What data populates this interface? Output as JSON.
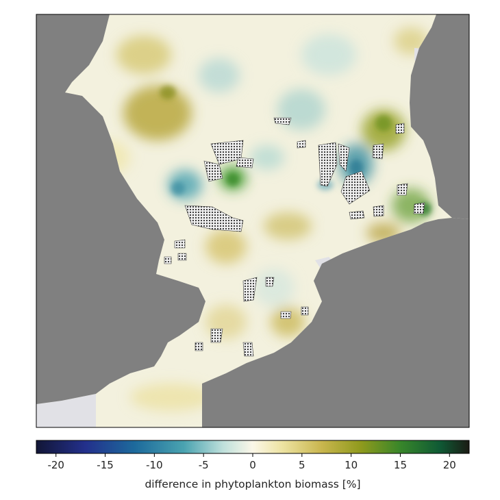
{
  "map": {
    "colors": {
      "land": "#808080",
      "out_of_domain_water": "#e1e1e6",
      "background_water": "#f3f1de",
      "frame": "#000000",
      "wind_farm_hatch": "#333333"
    }
  },
  "colorbar": {
    "label": "difference in phytoplankton biomass [%]",
    "min": -22,
    "max": 22,
    "ticks": [
      {
        "value": -20,
        "label": "-20"
      },
      {
        "value": -15,
        "label": "-15"
      },
      {
        "value": -10,
        "label": "-10"
      },
      {
        "value": -5,
        "label": "-5"
      },
      {
        "value": 0,
        "label": "0"
      },
      {
        "value": 5,
        "label": "5"
      },
      {
        "value": 10,
        "label": "10"
      },
      {
        "value": 15,
        "label": "15"
      },
      {
        "value": 20,
        "label": "20"
      }
    ],
    "stops": [
      {
        "value": -22,
        "color": "#121636"
      },
      {
        "value": -17,
        "color": "#23308c"
      },
      {
        "value": -12,
        "color": "#1d6a9c"
      },
      {
        "value": -7,
        "color": "#4aa3b0"
      },
      {
        "value": -3,
        "color": "#bfe0db"
      },
      {
        "value": 0,
        "color": "#fbf7e8"
      },
      {
        "value": 3,
        "color": "#ede3a2"
      },
      {
        "value": 7,
        "color": "#c9b64e"
      },
      {
        "value": 11,
        "color": "#8f9a1d"
      },
      {
        "value": 15,
        "color": "#38862a"
      },
      {
        "value": 19,
        "color": "#0f5a35"
      },
      {
        "value": 22,
        "color": "#1b1b14"
      }
    ]
  }
}
